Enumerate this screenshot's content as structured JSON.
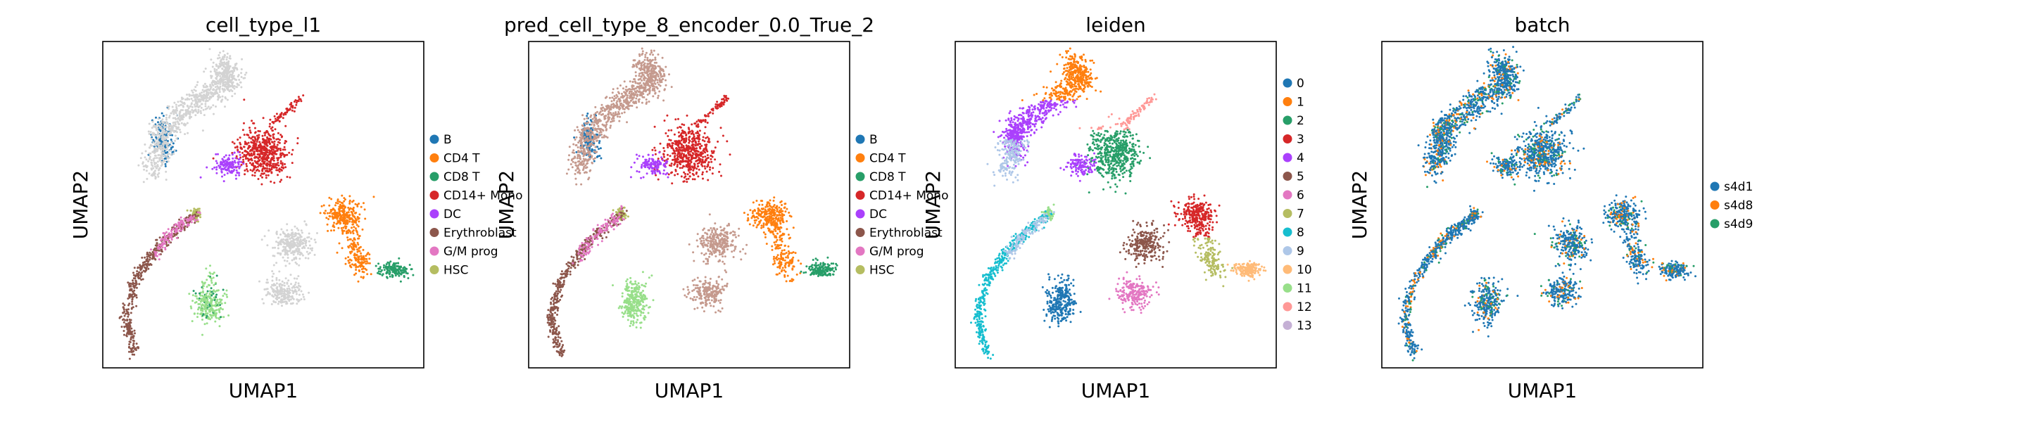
{
  "chart_data": [
    {
      "type": "scatter",
      "title": "cell_type_l1",
      "xlabel": "UMAP1",
      "ylabel": "UMAP2",
      "grid": false,
      "legend_position": "right",
      "series": [
        {
          "name": "B",
          "color": "#1f77b4"
        },
        {
          "name": "CD4 T",
          "color": "#ff7f0e"
        },
        {
          "name": "CD8 T",
          "color": "#279e68"
        },
        {
          "name": "CD14+ Mono",
          "color": "#d62728"
        },
        {
          "name": "DC",
          "color": "#aa40fc"
        },
        {
          "name": "Erythroblast",
          "color": "#8c564b"
        },
        {
          "name": "G/M prog",
          "color": "#e377c2"
        },
        {
          "name": "HSC",
          "color": "#b5bd61"
        }
      ]
    },
    {
      "type": "scatter",
      "title": "pred_cell_type_8_encoder_0.0_True_2",
      "xlabel": "UMAP1",
      "ylabel": "UMAP2",
      "grid": false,
      "legend_position": "right",
      "series": [
        {
          "name": "B",
          "color": "#1f77b4"
        },
        {
          "name": "CD4 T",
          "color": "#ff7f0e"
        },
        {
          "name": "CD8 T",
          "color": "#279e68"
        },
        {
          "name": "CD14+ Mono",
          "color": "#d62728"
        },
        {
          "name": "DC",
          "color": "#aa40fc"
        },
        {
          "name": "Erythroblast",
          "color": "#8c564b"
        },
        {
          "name": "G/M prog",
          "color": "#e377c2"
        },
        {
          "name": "HSC",
          "color": "#b5bd61"
        }
      ]
    },
    {
      "type": "scatter",
      "title": "leiden",
      "xlabel": "UMAP1",
      "ylabel": "UMAP2",
      "grid": false,
      "legend_position": "right",
      "series": [
        {
          "name": "0",
          "color": "#1f77b4"
        },
        {
          "name": "1",
          "color": "#ff7f0e"
        },
        {
          "name": "2",
          "color": "#279e68"
        },
        {
          "name": "3",
          "color": "#d62728"
        },
        {
          "name": "4",
          "color": "#aa40fc"
        },
        {
          "name": "5",
          "color": "#8c564b"
        },
        {
          "name": "6",
          "color": "#e377c2"
        },
        {
          "name": "7",
          "color": "#b5bd61"
        },
        {
          "name": "8",
          "color": "#17becf"
        },
        {
          "name": "9",
          "color": "#aec7e8"
        },
        {
          "name": "10",
          "color": "#ffbb78"
        },
        {
          "name": "11",
          "color": "#98df8a"
        },
        {
          "name": "12",
          "color": "#ff9896"
        },
        {
          "name": "13",
          "color": "#c5b0d5"
        }
      ]
    },
    {
      "type": "scatter",
      "title": "batch",
      "xlabel": "UMAP1",
      "ylabel": "UMAP2",
      "grid": false,
      "legend_position": "right",
      "series": [
        {
          "name": "s4d1",
          "color": "#1f77b4"
        },
        {
          "name": "s4d8",
          "color": "#ff7f0e"
        },
        {
          "name": "s4d9",
          "color": "#279e68"
        }
      ]
    }
  ]
}
